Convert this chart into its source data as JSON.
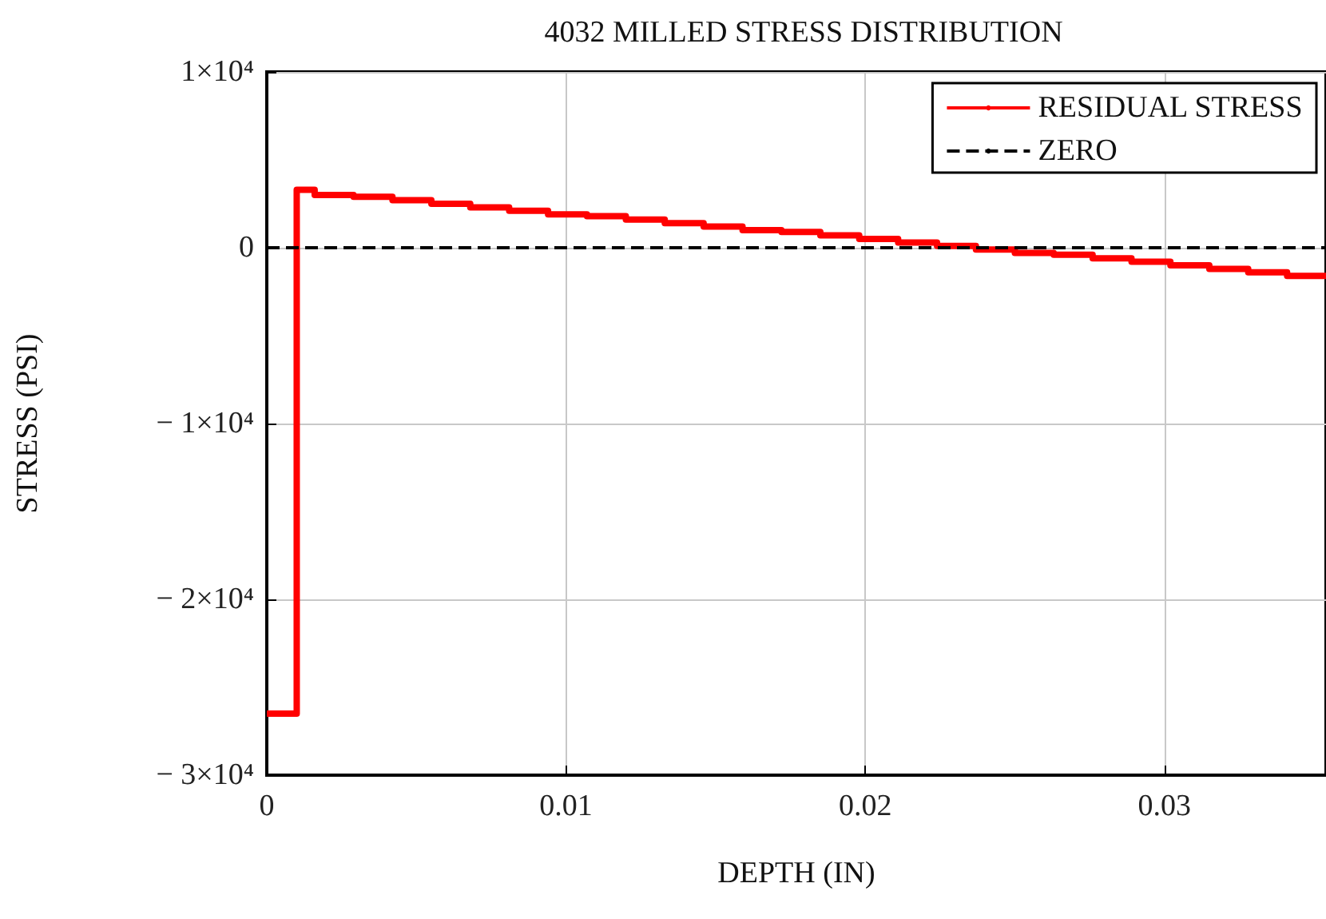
{
  "chart_data": {
    "type": "step",
    "title": "4032 MILLED STRESS DISTRIBUTION",
    "xlabel": "DEPTH (IN)",
    "ylabel": "STRESS (PSI)",
    "series": [
      {
        "name": "RESIDUAL STRESS",
        "color": "#ff0000",
        "x": [
          0,
          0.001,
          0.0016,
          0.0029,
          0.0042,
          0.0055,
          0.0068,
          0.0081,
          0.0094,
          0.0107,
          0.012,
          0.0133,
          0.0146,
          0.0159,
          0.0172,
          0.0185,
          0.0198,
          0.0211,
          0.0224,
          0.0237,
          0.025,
          0.0263,
          0.0276,
          0.0289,
          0.0302,
          0.0315,
          0.0328,
          0.0341,
          0.0354
        ],
        "values": [
          -26500,
          3300,
          3000,
          2900,
          2700,
          2500,
          2300,
          2100,
          1900,
          1800,
          1600,
          1400,
          1200,
          1000,
          900,
          700,
          500,
          300,
          100,
          -100,
          -300,
          -400,
          -600,
          -800,
          -1000,
          -1200,
          -1400,
          -1600,
          -1600
        ]
      }
    ],
    "ref_lines": [
      {
        "axis": "y",
        "value": 0,
        "label": "ZERO",
        "color": "#000000",
        "line_style": "dashed"
      }
    ],
    "xlim": [
      0,
      0.0354
    ],
    "xticks": [
      0,
      0.01,
      0.02,
      0.03
    ],
    "ylim": [
      -30000,
      10000
    ],
    "yticks": [
      {
        "value": 10000,
        "label": "1×10⁴"
      },
      0,
      {
        "value": -10000,
        "label": "− 1×10⁴"
      },
      {
        "value": -20000,
        "label": "− 2×10⁴"
      },
      {
        "value": -30000,
        "label": "− 3×10⁴"
      }
    ],
    "grid": true,
    "legend": "top right",
    "line_style": "solid"
  }
}
